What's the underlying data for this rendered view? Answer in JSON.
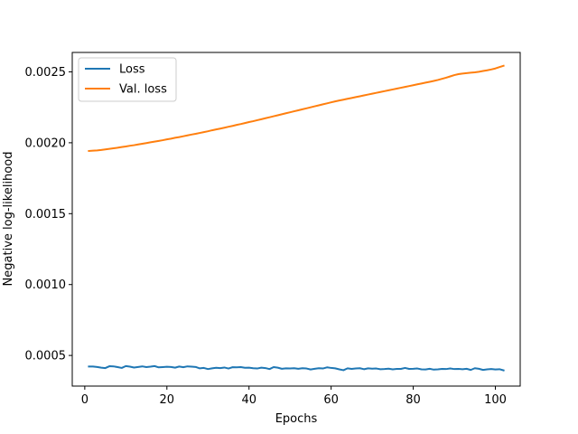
{
  "chart_data": {
    "type": "line",
    "title": "",
    "xlabel": "Epochs",
    "ylabel": "Negative log-likelihood",
    "xlim": [
      -3.05,
      106.05
    ],
    "ylim": [
      0.000284,
      0.002637
    ],
    "xticks": [
      0,
      20,
      40,
      60,
      80,
      100
    ],
    "yticks": [
      0.0005,
      0.001,
      0.0015,
      0.002,
      0.0025
    ],
    "ytick_labels": [
      "0.0005",
      "0.0010",
      "0.0015",
      "0.0020",
      "0.0025"
    ],
    "grid": false,
    "legend_position": "top-left",
    "colors": {
      "loss": "#1f77b4",
      "val_loss": "#ff7f0e"
    },
    "series": [
      {
        "name": "Loss",
        "color": "#1f77b4",
        "x": [
          1,
          2,
          3,
          4,
          5,
          6,
          7,
          8,
          9,
          10,
          11,
          12,
          13,
          14,
          15,
          16,
          17,
          18,
          19,
          20,
          21,
          22,
          23,
          24,
          25,
          26,
          27,
          28,
          29,
          30,
          31,
          32,
          33,
          34,
          35,
          36,
          37,
          38,
          39,
          40,
          41,
          42,
          43,
          44,
          45,
          46,
          47,
          48,
          49,
          50,
          51,
          52,
          53,
          54,
          55,
          56,
          57,
          58,
          59,
          60,
          61,
          62,
          63,
          64,
          65,
          66,
          67,
          68,
          69,
          70,
          71,
          72,
          73,
          74,
          75,
          76,
          77,
          78,
          79,
          80,
          81,
          82,
          83,
          84,
          85,
          86,
          87,
          88,
          89,
          90,
          91,
          92,
          93,
          94,
          95,
          96,
          97,
          98,
          99,
          100,
          101,
          102
        ],
        "values": [
          0.000422,
          0.000422,
          0.000419,
          0.000414,
          0.000411,
          0.000424,
          0.000423,
          0.000418,
          0.000412,
          0.000425,
          0.000421,
          0.000415,
          0.000419,
          0.000423,
          0.000418,
          0.000421,
          0.000425,
          0.000416,
          0.000418,
          0.00042,
          0.000419,
          0.000414,
          0.000422,
          0.000417,
          0.000423,
          0.000421,
          0.000419,
          0.000409,
          0.000412,
          0.000404,
          0.000409,
          0.000413,
          0.000411,
          0.000415,
          0.000408,
          0.000417,
          0.000416,
          0.000418,
          0.000413,
          0.000414,
          0.00041,
          0.000408,
          0.000414,
          0.000411,
          0.000404,
          0.000418,
          0.000414,
          0.000406,
          0.000409,
          0.000408,
          0.00041,
          0.000406,
          0.00041,
          0.000408,
          0.000401,
          0.000406,
          0.00041,
          0.000408,
          0.000416,
          0.000412,
          0.000409,
          0.000402,
          0.000396,
          0.000409,
          0.000405,
          0.000408,
          0.00041,
          0.000403,
          0.000409,
          0.000407,
          0.000408,
          0.000403,
          0.000404,
          0.000407,
          0.000402,
          0.000405,
          0.000405,
          0.000412,
          0.000405,
          0.000406,
          0.000408,
          0.000402,
          0.000401,
          0.000406,
          0.0004,
          0.000402,
          0.000405,
          0.000404,
          0.000408,
          0.000404,
          0.000405,
          0.000403,
          0.000406,
          0.000398,
          0.00041,
          0.000406,
          0.000398,
          0.000402,
          0.000404,
          0.000401,
          0.000403,
          0.000395
        ]
      },
      {
        "name": "Val. loss",
        "color": "#ff7f0e",
        "x": [
          1,
          2,
          3,
          4,
          5,
          6,
          7,
          8,
          9,
          10,
          11,
          12,
          13,
          14,
          15,
          16,
          17,
          18,
          19,
          20,
          21,
          22,
          23,
          24,
          25,
          26,
          27,
          28,
          29,
          30,
          31,
          32,
          33,
          34,
          35,
          36,
          37,
          38,
          39,
          40,
          41,
          42,
          43,
          44,
          45,
          46,
          47,
          48,
          49,
          50,
          51,
          52,
          53,
          54,
          55,
          56,
          57,
          58,
          59,
          60,
          61,
          62,
          63,
          64,
          65,
          66,
          67,
          68,
          69,
          70,
          71,
          72,
          73,
          74,
          75,
          76,
          77,
          78,
          79,
          80,
          81,
          82,
          83,
          84,
          85,
          86,
          87,
          88,
          89,
          90,
          91,
          92,
          93,
          94,
          95,
          96,
          97,
          98,
          99,
          100,
          101,
          102
        ],
        "values": [
          0.001942,
          0.001944,
          0.001946,
          0.001949,
          0.001953,
          0.001957,
          0.001961,
          0.001965,
          0.00197,
          0.001974,
          0.001979,
          0.001983,
          0.001988,
          0.001993,
          0.001998,
          0.002003,
          0.002008,
          0.002013,
          0.002018,
          0.002024,
          0.002029,
          0.002035,
          0.00204,
          0.002046,
          0.002052,
          0.002058,
          0.002063,
          0.002069,
          0.002075,
          0.002081,
          0.002088,
          0.002094,
          0.0021,
          0.002106,
          0.002113,
          0.002119,
          0.002126,
          0.002132,
          0.002139,
          0.002146,
          0.002152,
          0.002159,
          0.002166,
          0.002173,
          0.00218,
          0.002187,
          0.002194,
          0.002201,
          0.002208,
          0.002215,
          0.002222,
          0.002229,
          0.002236,
          0.002243,
          0.00225,
          0.002257,
          0.002264,
          0.002271,
          0.002278,
          0.002285,
          0.002292,
          0.002298,
          0.002304,
          0.00231,
          0.002316,
          0.002322,
          0.002328,
          0.002334,
          0.00234,
          0.002346,
          0.002352,
          0.002358,
          0.002364,
          0.00237,
          0.002376,
          0.002382,
          0.002388,
          0.002394,
          0.0024,
          0.002406,
          0.002412,
          0.002418,
          0.002424,
          0.00243,
          0.002436,
          0.002443,
          0.002451,
          0.002459,
          0.002468,
          0.002477,
          0.002484,
          0.002488,
          0.002491,
          0.002494,
          0.002497,
          0.002501,
          0.002506,
          0.002511,
          0.002517,
          0.002524,
          0.002534,
          0.002543
        ]
      }
    ]
  }
}
